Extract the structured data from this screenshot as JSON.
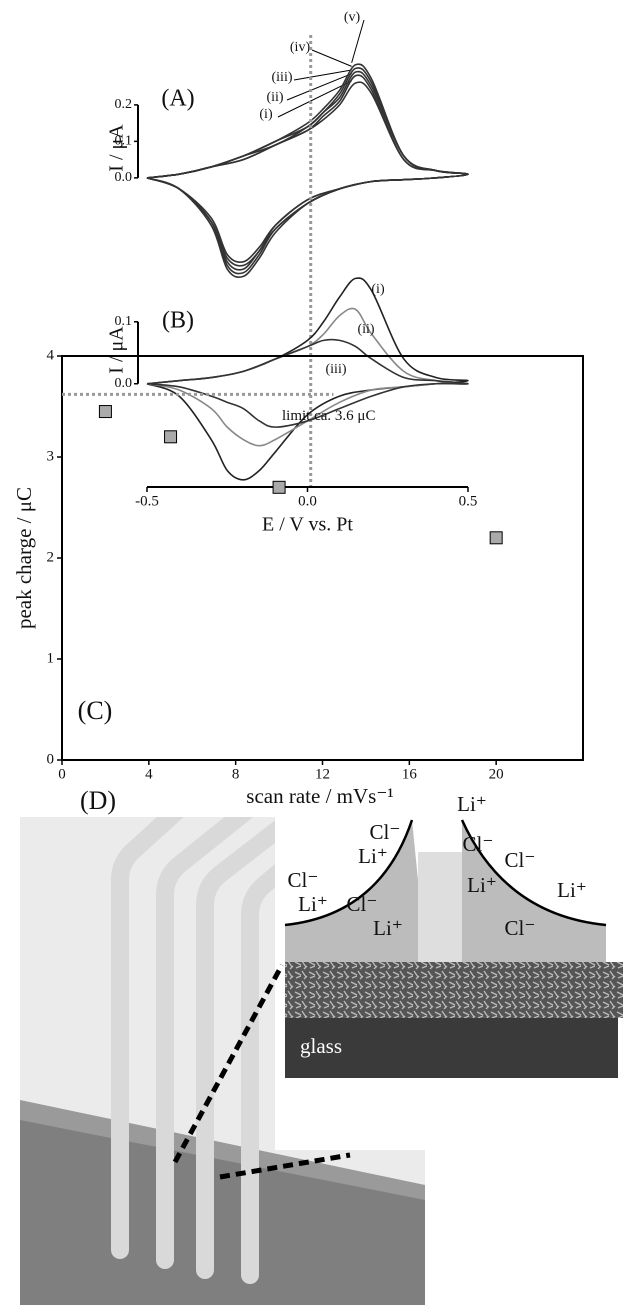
{
  "chart_data": [
    {
      "type": "line",
      "panel_label": "(A)",
      "ylabel": "I / μA",
      "x": [
        -0.5,
        -0.4,
        -0.3,
        -0.2,
        -0.1,
        0,
        0.05,
        0.1,
        0.15,
        0.2,
        0.3,
        0.4,
        0.5,
        0.4,
        0.3,
        0.2,
        0.1,
        0,
        -0.1,
        -0.15,
        -0.2,
        -0.25,
        -0.3,
        -0.4,
        -0.5
      ],
      "xlim": [
        -0.5,
        0.5
      ],
      "ylim": [
        -0.31,
        0.46
      ],
      "yticks": [
        {
          "value": 0,
          "label": "0.0"
        },
        0.1,
        0.2
      ],
      "series": [
        {
          "name": "(i)",
          "color": "#333333",
          "values": [
            0,
            0.01,
            0.03,
            0.05,
            0.09,
            0.13,
            0.16,
            0.2,
            0.26,
            0.23,
            0.05,
            0.02,
            0.01,
            0,
            -0.005,
            -0.01,
            -0.03,
            -0.06,
            -0.13,
            -0.19,
            -0.23,
            -0.21,
            -0.11,
            -0.03,
            0
          ]
        },
        {
          "name": "(ii)",
          "color": "#333333",
          "values": [
            0,
            0.01,
            0.03,
            0.05,
            0.09,
            0.13,
            0.17,
            0.21,
            0.28,
            0.24,
            0.05,
            0.02,
            0.01,
            0,
            -0.005,
            -0.01,
            -0.03,
            -0.06,
            -0.13,
            -0.2,
            -0.24,
            -0.22,
            -0.12,
            -0.03,
            0
          ]
        },
        {
          "name": "(iii)",
          "color": "#333333",
          "values": [
            0,
            0.01,
            0.03,
            0.06,
            0.09,
            0.14,
            0.18,
            0.22,
            0.29,
            0.25,
            0.06,
            0.02,
            0.01,
            0,
            -0.005,
            -0.01,
            -0.03,
            -0.07,
            -0.14,
            -0.2,
            -0.25,
            -0.23,
            -0.12,
            -0.03,
            0
          ]
        },
        {
          "name": "(iv)",
          "color": "#333333",
          "values": [
            0,
            0.01,
            0.03,
            0.06,
            0.1,
            0.14,
            0.18,
            0.23,
            0.3,
            0.26,
            0.06,
            0.02,
            0.01,
            0,
            -0.005,
            -0.01,
            -0.03,
            -0.07,
            -0.14,
            -0.21,
            -0.26,
            -0.24,
            -0.12,
            -0.03,
            0
          ]
        },
        {
          "name": "(v)",
          "color": "#333333",
          "values": [
            0,
            0.01,
            0.03,
            0.06,
            0.1,
            0.15,
            0.19,
            0.24,
            0.31,
            0.27,
            0.06,
            0.02,
            0.01,
            0,
            -0.005,
            -0.01,
            -0.03,
            -0.07,
            -0.15,
            -0.22,
            -0.27,
            -0.25,
            -0.13,
            -0.03,
            0
          ]
        }
      ]
    },
    {
      "type": "line",
      "panel_label": "(B)",
      "ylabel": "I / μA",
      "xlabel": "E / V vs. Pt",
      "x": [
        -0.5,
        -0.4,
        -0.3,
        -0.2,
        -0.1,
        0,
        0.05,
        0.1,
        0.15,
        0.2,
        0.3,
        0.4,
        0.5,
        0.4,
        0.3,
        0.2,
        0.1,
        0,
        -0.1,
        -0.15,
        -0.2,
        -0.25,
        -0.3,
        -0.4,
        -0.5
      ],
      "xlim": [
        -0.5,
        0.5
      ],
      "ylim": [
        -0.165,
        0.19
      ],
      "xticks": [
        -0.5,
        {
          "value": 0,
          "label": "0.0"
        },
        0.5
      ],
      "yticks": [
        {
          "value": 0,
          "label": "0.0"
        },
        0.1
      ],
      "ref_x": 0.01,
      "series": [
        {
          "name": "(i)",
          "color": "#222222",
          "values": [
            0,
            0.005,
            0.01,
            0.02,
            0.04,
            0.07,
            0.1,
            0.14,
            0.17,
            0.15,
            0.04,
            0.01,
            0.005,
            0,
            -0.005,
            -0.01,
            -0.02,
            -0.05,
            -0.11,
            -0.14,
            -0.155,
            -0.14,
            -0.09,
            -0.02,
            0
          ]
        },
        {
          "name": "(ii)",
          "color": "#888888",
          "values": [
            0,
            0.005,
            0.01,
            0.02,
            0.04,
            0.06,
            0.08,
            0.11,
            0.12,
            0.08,
            0.02,
            0.005,
            0,
            0,
            -0.005,
            -0.01,
            -0.03,
            -0.06,
            -0.09,
            -0.1,
            -0.09,
            -0.07,
            -0.04,
            -0.01,
            0
          ]
        },
        {
          "name": "(iii)",
          "color": "#333333",
          "values": [
            0,
            0.005,
            0.01,
            0.02,
            0.04,
            0.06,
            0.07,
            0.07,
            0.06,
            0.04,
            0.01,
            0.005,
            0,
            0,
            -0.005,
            -0.02,
            -0.04,
            -0.06,
            -0.07,
            -0.06,
            -0.04,
            -0.03,
            -0.02,
            -0.005,
            0
          ]
        }
      ]
    },
    {
      "type": "scatter",
      "panel_label": "(C)",
      "ylabel": "peak charge / μC",
      "xlabel": "scan rate / mVs⁻¹",
      "x": [
        2,
        5,
        10,
        20
      ],
      "values": [
        3.45,
        3.2,
        2.7,
        2.2
      ],
      "color": "#aaaaaa",
      "xlim": [
        0,
        24
      ],
      "ylim": [
        0,
        4
      ],
      "xticks": [
        0,
        4,
        8,
        12,
        16,
        20
      ],
      "yticks": [
        0,
        1,
        2,
        3,
        4
      ],
      "limit": {
        "y": 3.62,
        "x_end": 12.5,
        "label": "limit ca. 3.6 μC"
      }
    }
  ],
  "illustration": {
    "label": "(D)",
    "ions": [
      "Cl⁻",
      "Li⁺",
      "Li⁺",
      "Cl⁻",
      "Cl⁻",
      "Cl⁻",
      "Li⁺",
      "Li⁺",
      "Cl⁻",
      "Li⁺",
      "Li⁺",
      "Cl⁻"
    ],
    "substrate": "glass"
  }
}
